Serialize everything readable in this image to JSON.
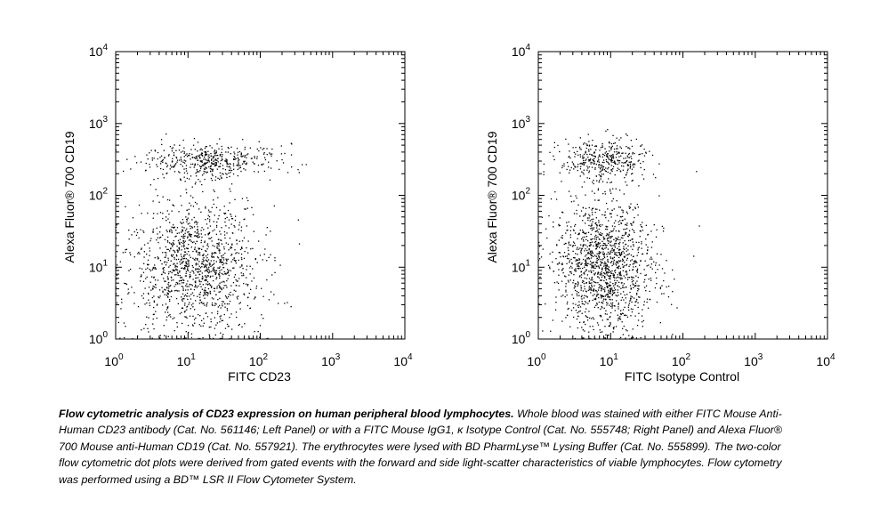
{
  "chart_data": [
    {
      "type": "scatter",
      "xlabel": "FITC CD23",
      "ylabel": "Alexa Fluor® 700 CD19",
      "x_scale": "log",
      "y_scale": "log",
      "xlim": [
        1,
        10000
      ],
      "ylim": [
        1,
        10000
      ],
      "x_tick_labels": [
        "10^0",
        "10^1",
        "10^2",
        "10^3",
        "10^4"
      ],
      "y_tick_labels": [
        "10^0",
        "10^1",
        "10^2",
        "10^3",
        "10^4"
      ],
      "populations": [
        {
          "center": [
            12,
            10
          ],
          "spread": [
            0.45,
            0.45
          ],
          "count": 1300
        },
        {
          "center": [
            20,
            300
          ],
          "spread": [
            0.45,
            0.12
          ],
          "count": 450
        }
      ],
      "grid": false
    },
    {
      "type": "scatter",
      "xlabel": "FITC Isotype Control",
      "ylabel": "Alexa Fluor® 700 CD19",
      "x_scale": "log",
      "y_scale": "log",
      "xlim": [
        1,
        10000
      ],
      "ylim": [
        1,
        10000
      ],
      "x_tick_labels": [
        "10^0",
        "10^1",
        "10^2",
        "10^3",
        "10^4"
      ],
      "y_tick_labels": [
        "10^0",
        "10^1",
        "10^2",
        "10^3",
        "10^4"
      ],
      "populations": [
        {
          "center": [
            8,
            10
          ],
          "spread": [
            0.35,
            0.45
          ],
          "count": 1400
        },
        {
          "center": [
            8,
            300
          ],
          "spread": [
            0.3,
            0.16
          ],
          "count": 380
        }
      ],
      "grid": false
    }
  ],
  "caption": {
    "title": "Flow cytometric analysis of CD23 expression on human peripheral blood lymphocytes.",
    "body": " Whole blood was stained with either FITC Mouse Anti-Human CD23 antibody (Cat. No. 561146; Left Panel) or with a FITC Mouse IgG1, κ Isotype Control (Cat. No. 555748; Right Panel) and Alexa Fluor® 700 Mouse anti-Human CD19 (Cat. No. 557921). The erythrocytes were lysed with BD PharmLyse™ Lysing Buffer (Cat. No. 555899). The two-color flow cytometric dot plots were derived from gated events with the forward and side light-scatter characteristics of viable lymphocytes. Flow cytometry was performed using a BD™ LSR II Flow Cytometer System."
  }
}
